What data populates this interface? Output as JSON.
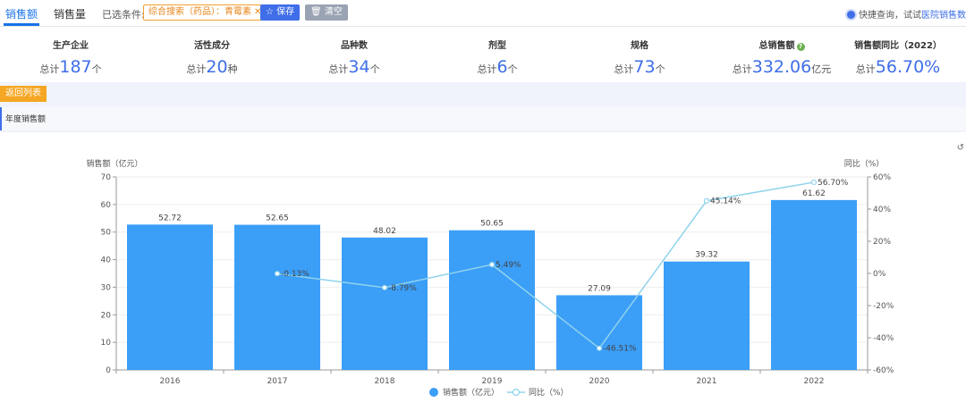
{
  "tabs": [
    {
      "label": "销售额",
      "active": true
    },
    {
      "label": "销售量",
      "active": false
    }
  ],
  "filter": {
    "label": "已选条件:",
    "tag": "综合搜索（药品）：青霉素",
    "save_label": "保存",
    "clear_label": "清空"
  },
  "quick": {
    "text": "快捷查询，试试",
    "link": "医院销售数"
  },
  "stats": [
    {
      "name": "生产企业",
      "prefix": "总计",
      "value": "187",
      "unit": "个"
    },
    {
      "name": "活性成分",
      "prefix": "总计",
      "value": "20",
      "unit": "种"
    },
    {
      "name": "品种数",
      "prefix": "总计",
      "value": "34",
      "unit": "个"
    },
    {
      "name": "剂型",
      "prefix": "总计",
      "value": "6",
      "unit": "个"
    },
    {
      "name": "规格",
      "prefix": "总计",
      "value": "73",
      "unit": "个"
    },
    {
      "name": "总销售额",
      "prefix": "总计",
      "value": "332.06",
      "unit": "亿元"
    },
    {
      "name": "销售额同比（2022）",
      "prefix": "总计",
      "value": "56.70%",
      "unit": ""
    }
  ],
  "back_label": "返回列表",
  "section_title": "年度销售额",
  "colors": {
    "accent": "#3f6ee8",
    "bar": "#3b9ef7",
    "line": "#8fd3ec",
    "orange": "#f5a623"
  },
  "chart_data": {
    "type": "bar",
    "categories": [
      "2016",
      "2017",
      "2018",
      "2019",
      "2020",
      "2021",
      "2022"
    ],
    "series": [
      {
        "name": "销售额（亿元）",
        "type": "bar",
        "axis": "left",
        "values": [
          52.72,
          52.65,
          48.02,
          50.65,
          27.09,
          39.32,
          61.62
        ],
        "labels": [
          "52.72",
          "52.65",
          "48.02",
          "50.65",
          "27.09",
          "39.32",
          "61.62"
        ]
      },
      {
        "name": "同比（%）",
        "type": "line",
        "axis": "right",
        "values": [
          null,
          -0.13,
          -8.79,
          5.49,
          -46.51,
          45.14,
          56.7
        ],
        "labels": [
          "",
          "-0.13%",
          "-8.79%",
          "5.49%",
          "-46.51%",
          "45.14%",
          "56.70%"
        ]
      }
    ],
    "ylabel": "销售额（亿元）",
    "y2label": "同比（%）",
    "ylim": [
      0,
      70
    ],
    "yticks": [
      0,
      10,
      20,
      30,
      40,
      50,
      60,
      70
    ],
    "y2lim": [
      -60,
      60
    ],
    "y2ticks": [
      -60,
      -40,
      -20,
      0,
      20,
      40,
      60
    ],
    "y2ticklabels": [
      "-60%",
      "-40%",
      "-20%",
      "0%",
      "20%",
      "40%",
      "60%"
    ],
    "legend": "bottom-center"
  }
}
